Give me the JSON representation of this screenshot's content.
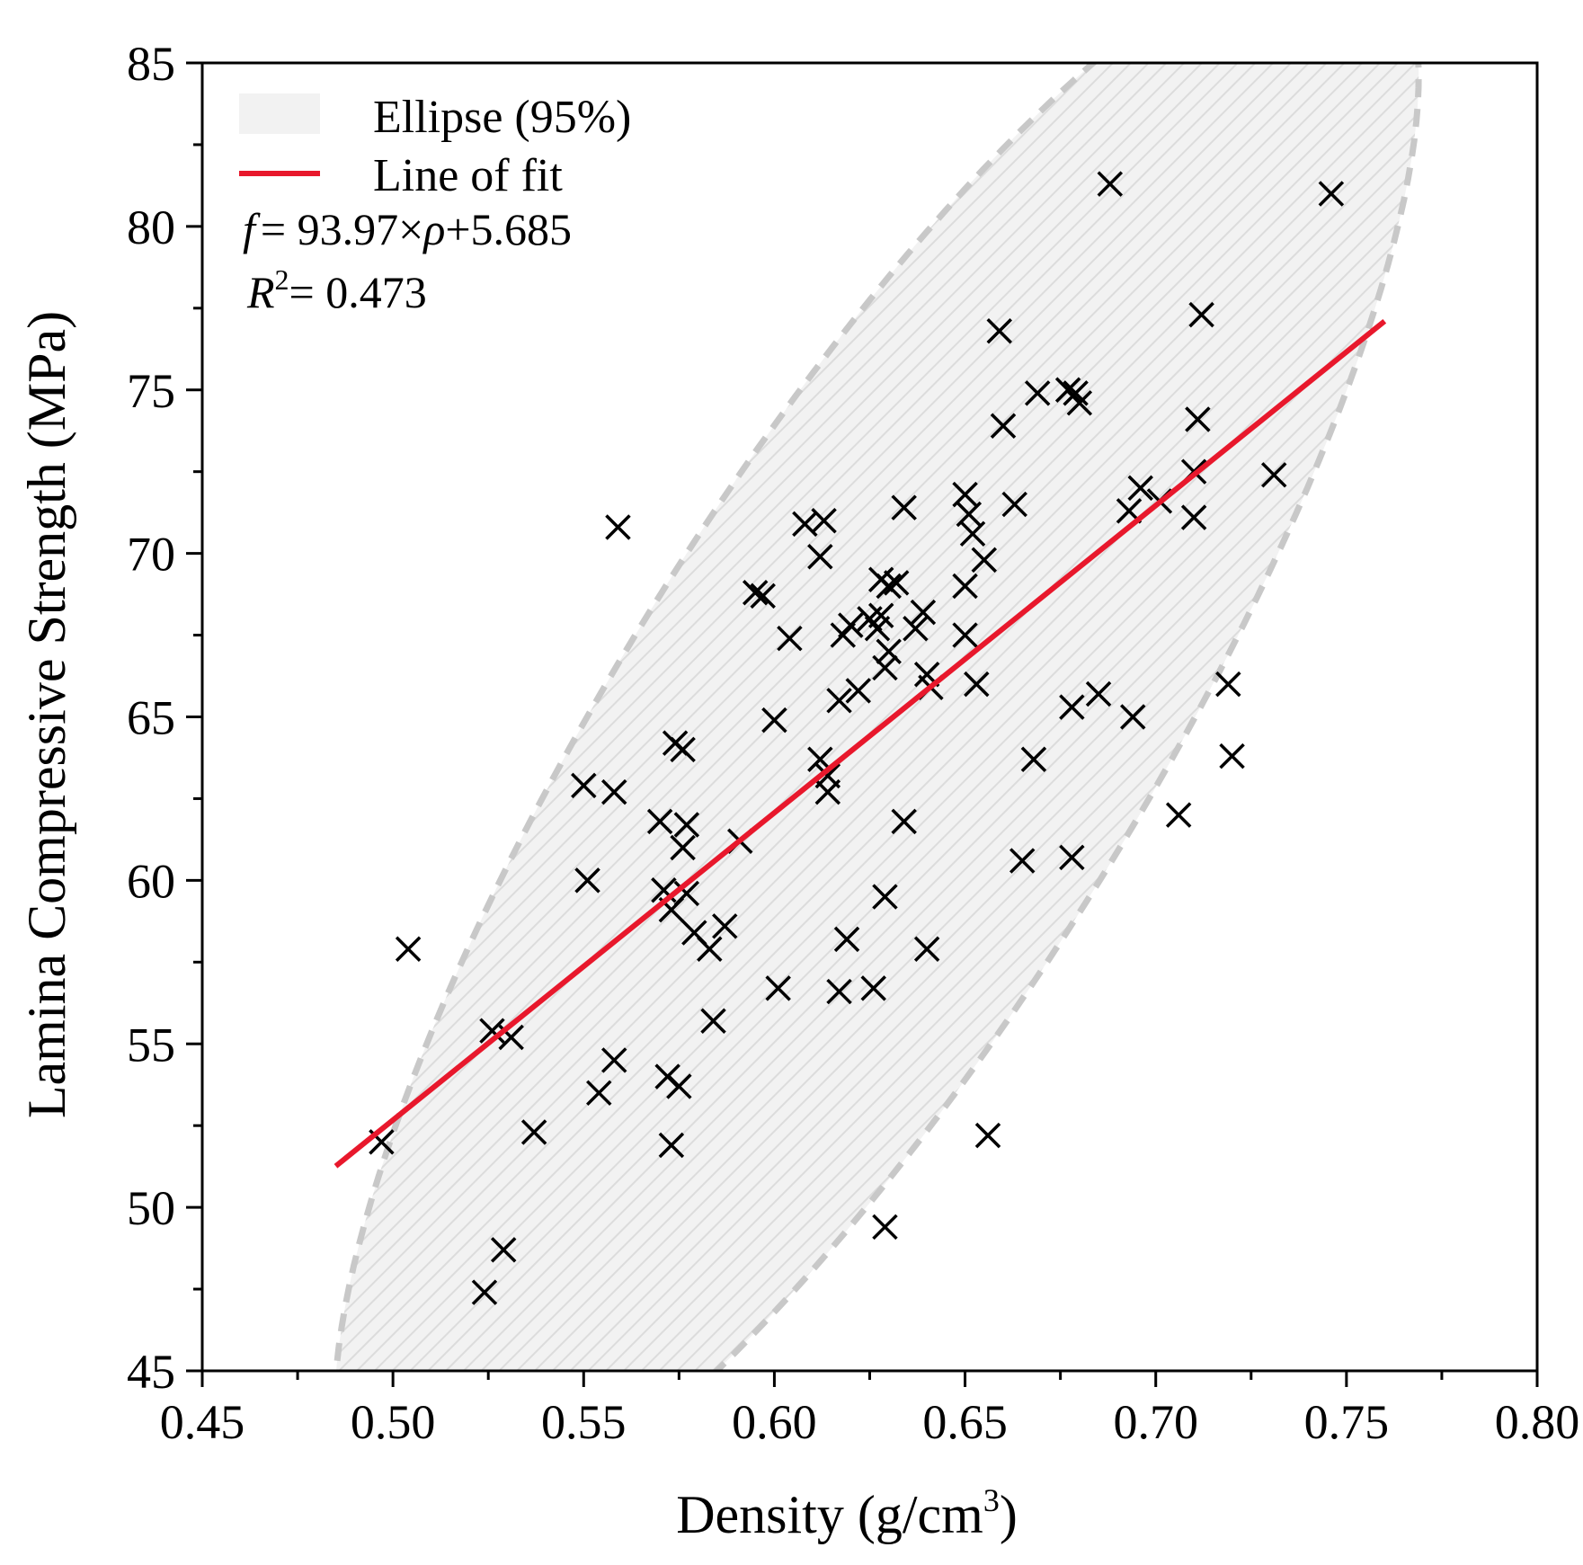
{
  "colors": {
    "fit_line": "#e8182c",
    "ellipse_stroke": "#c8c8c8",
    "ellipse_fill": "#f2f2f2",
    "ellipse_hatch": "#dcdcdc",
    "marker": "#000000",
    "axis": "#000000"
  },
  "icons": {
    "marker": "x-marker-icon"
  },
  "chart_data": {
    "type": "scatter",
    "title": "",
    "xlabel_main": "Density (g/cm",
    "xlabel_sup": "3",
    "xlabel_close": ")",
    "ylabel": "Lamina Compressive Strength (MPa)",
    "xlim": [
      0.45,
      0.8
    ],
    "ylim": [
      45,
      85
    ],
    "xticks": [
      0.45,
      0.5,
      0.55,
      0.6,
      0.65,
      0.7,
      0.75,
      0.8
    ],
    "xtick_labels": [
      "0.45",
      "0.50",
      "0.55",
      "0.60",
      "0.65",
      "0.70",
      "0.75",
      "0.80"
    ],
    "yticks": [
      45,
      50,
      55,
      60,
      65,
      70,
      75,
      80,
      85
    ],
    "ytick_labels": [
      "45",
      "50",
      "55",
      "60",
      "65",
      "70",
      "75",
      "80",
      "85"
    ],
    "legend": {
      "position": "top-left",
      "ellipse_label": "Ellipse (95%)",
      "fit_label": "Line of fit"
    },
    "annotations": {
      "eq_f": "f",
      "eq_rest": "= 93.97×",
      "eq_rho": "ρ",
      "eq_tail": "+5.685",
      "r_letter": "R",
      "r_sup": "2",
      "r_value": "= 0.473"
    },
    "fit": {
      "slope": 93.97,
      "intercept": 5.685,
      "x_start": 0.485,
      "x_end": 0.76
    },
    "ellipse": {
      "cx": 0.6268,
      "cy": 64.2,
      "ux": 0.1375,
      "uy": 23.2,
      "vx": -0.036,
      "vy": 8.2
    },
    "points": [
      [
        0.497,
        52.0
      ],
      [
        0.504,
        57.9
      ],
      [
        0.524,
        47.4
      ],
      [
        0.526,
        55.4
      ],
      [
        0.529,
        48.7
      ],
      [
        0.531,
        55.2
      ],
      [
        0.537,
        52.3
      ],
      [
        0.55,
        62.9
      ],
      [
        0.551,
        60.0
      ],
      [
        0.554,
        53.5
      ],
      [
        0.558,
        62.7
      ],
      [
        0.558,
        54.5
      ],
      [
        0.559,
        70.8
      ],
      [
        0.57,
        61.8
      ],
      [
        0.571,
        59.7
      ],
      [
        0.572,
        54.0
      ],
      [
        0.573,
        51.9
      ],
      [
        0.573,
        59.1
      ],
      [
        0.574,
        64.2
      ],
      [
        0.575,
        53.7
      ],
      [
        0.576,
        64.0
      ],
      [
        0.576,
        61.0
      ],
      [
        0.577,
        61.7
      ],
      [
        0.577,
        59.6
      ],
      [
        0.579,
        58.4
      ],
      [
        0.583,
        57.9
      ],
      [
        0.584,
        55.7
      ],
      [
        0.587,
        58.6
      ],
      [
        0.591,
        61.2
      ],
      [
        0.595,
        68.8
      ],
      [
        0.597,
        68.7
      ],
      [
        0.6,
        64.9
      ],
      [
        0.601,
        56.7
      ],
      [
        0.604,
        67.4
      ],
      [
        0.608,
        70.9
      ],
      [
        0.612,
        63.7
      ],
      [
        0.612,
        69.9
      ],
      [
        0.613,
        71.0
      ],
      [
        0.614,
        62.7
      ],
      [
        0.614,
        63.2
      ],
      [
        0.617,
        65.5
      ],
      [
        0.617,
        56.6
      ],
      [
        0.618,
        67.5
      ],
      [
        0.619,
        58.2
      ],
      [
        0.62,
        67.8
      ],
      [
        0.622,
        65.8
      ],
      [
        0.625,
        68.0
      ],
      [
        0.626,
        56.7
      ],
      [
        0.627,
        67.7
      ],
      [
        0.628,
        68.1
      ],
      [
        0.628,
        69.2
      ],
      [
        0.629,
        66.5
      ],
      [
        0.629,
        59.5
      ],
      [
        0.629,
        49.4
      ],
      [
        0.63,
        67.0
      ],
      [
        0.63,
        69.0
      ],
      [
        0.632,
        69.1
      ],
      [
        0.634,
        61.8
      ],
      [
        0.634,
        71.4
      ],
      [
        0.637,
        67.7
      ],
      [
        0.639,
        68.2
      ],
      [
        0.64,
        66.3
      ],
      [
        0.64,
        57.9
      ],
      [
        0.641,
        65.9
      ],
      [
        0.65,
        71.8
      ],
      [
        0.65,
        69.0
      ],
      [
        0.65,
        67.5
      ],
      [
        0.651,
        71.2
      ],
      [
        0.652,
        70.6
      ],
      [
        0.653,
        66.0
      ],
      [
        0.655,
        69.8
      ],
      [
        0.656,
        52.2
      ],
      [
        0.659,
        76.8
      ],
      [
        0.66,
        73.9
      ],
      [
        0.663,
        71.5
      ],
      [
        0.665,
        60.6
      ],
      [
        0.668,
        63.7
      ],
      [
        0.669,
        74.9
      ],
      [
        0.677,
        75.0
      ],
      [
        0.678,
        65.3
      ],
      [
        0.678,
        60.7
      ],
      [
        0.679,
        74.9
      ],
      [
        0.68,
        74.6
      ],
      [
        0.685,
        65.7
      ],
      [
        0.688,
        81.3
      ],
      [
        0.693,
        71.3
      ],
      [
        0.694,
        65.0
      ],
      [
        0.696,
        72.0
      ],
      [
        0.701,
        71.6
      ],
      [
        0.706,
        62.0
      ],
      [
        0.71,
        72.5
      ],
      [
        0.71,
        71.1
      ],
      [
        0.711,
        74.1
      ],
      [
        0.712,
        77.3
      ],
      [
        0.719,
        66.0
      ],
      [
        0.72,
        63.8
      ],
      [
        0.731,
        72.4
      ],
      [
        0.746,
        81.0
      ]
    ]
  }
}
